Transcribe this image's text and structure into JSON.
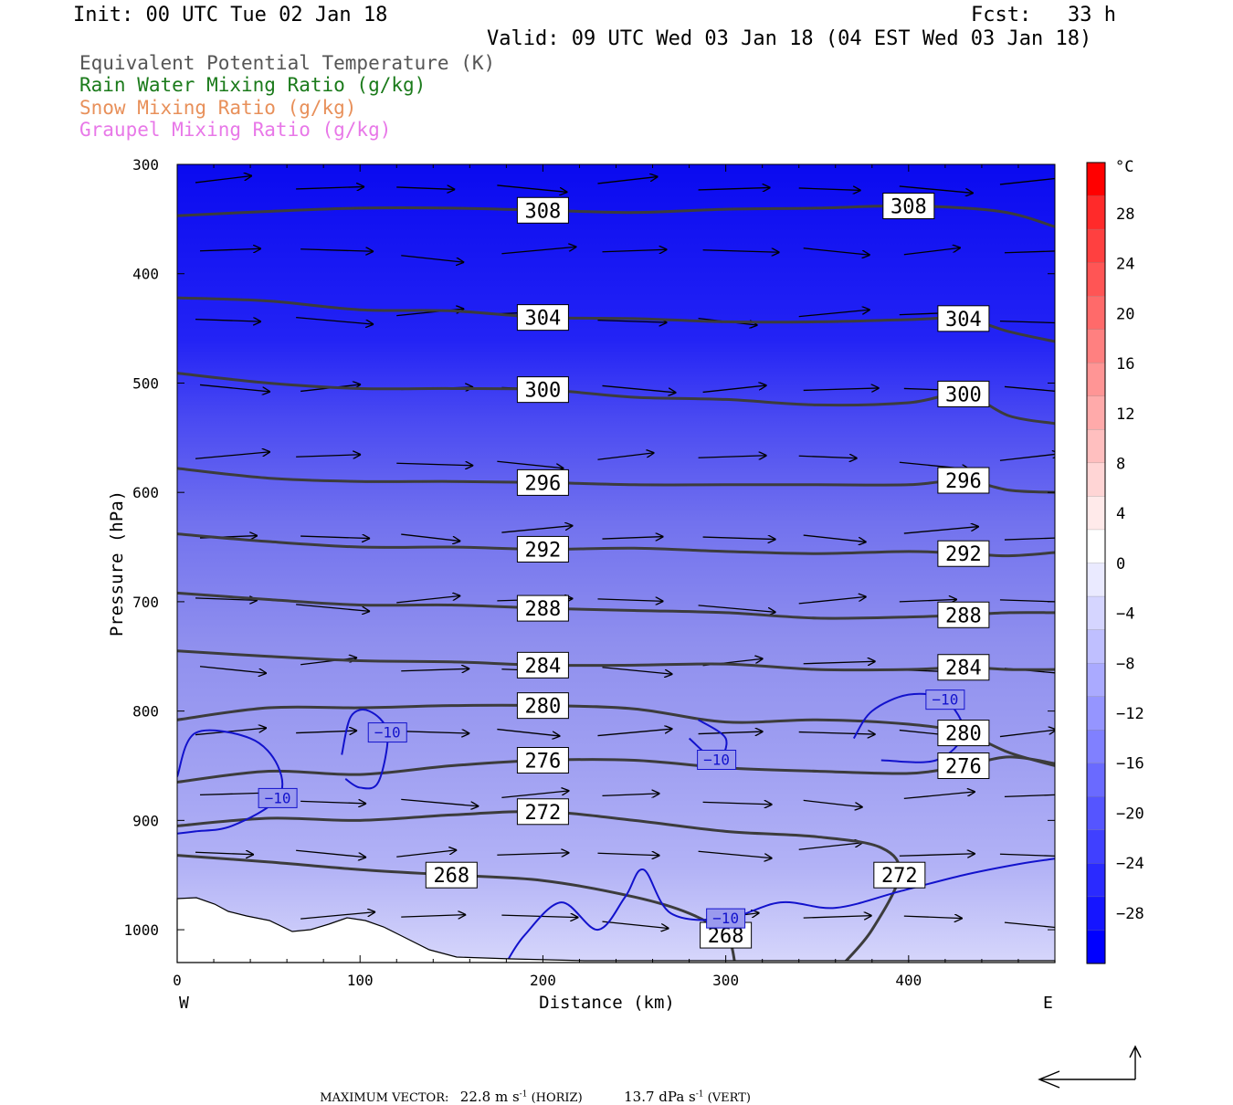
{
  "header": {
    "init": "Init: 00 UTC Tue 02 Jan 18",
    "fcst": "Fcst:   33 h",
    "valid": "Valid: 09 UTC Wed 03 Jan 18 (04 EST Wed 03 Jan 18)"
  },
  "legend": [
    {
      "label": "Equivalent Potential Temperature (K)",
      "color": "#555555"
    },
    {
      "label": "Rain Water Mixing Ratio (g/kg)",
      "color": "#1a7a1a"
    },
    {
      "label": "Snow Mixing Ratio (g/kg)",
      "color": "#e8905a"
    },
    {
      "label": "Graupel Mixing Ratio (g/kg)",
      "color": "#e878e8"
    }
  ],
  "footer": {
    "max_vector_label": "MAXIMUM VECTOR:",
    "horiz_value": "22.8 m s",
    "horiz_unit": " (HORIZ)",
    "vert_value": "13.7 dPa s",
    "vert_unit": " (VERT)",
    "exponent": "-1"
  },
  "chart_data": {
    "type": "cross-section",
    "xlabel": "Distance (km)",
    "ylabel": "Pressure (hPa)",
    "xlim": [
      0,
      480
    ],
    "ylim": [
      1030,
      300
    ],
    "x_ticks": [
      0,
      100,
      200,
      300,
      400
    ],
    "y_ticks": [
      300,
      400,
      500,
      600,
      700,
      800,
      900,
      1000
    ],
    "x_end_labels": {
      "left": "W",
      "right": "E"
    },
    "colorbar": {
      "unit": "°C",
      "tick_labels": [
        "28",
        "24",
        "20",
        "16",
        "12",
        "8",
        "4",
        "0",
        "−4",
        "−8",
        "−12",
        "−16",
        "−20",
        "−24",
        "−28"
      ],
      "colors": [
        "#ff0000",
        "#ff2a2a",
        "#ff4040",
        "#ff5555",
        "#ff6a6a",
        "#ff8080",
        "#ff9595",
        "#ffaaaa",
        "#ffbfbf",
        "#ffd5d5",
        "#ffeaea",
        "#ffffff",
        "#eaeaff",
        "#d5d5ff",
        "#bfbfff",
        "#aaaaff",
        "#9595ff",
        "#8080ff",
        "#6a6aff",
        "#5555ff",
        "#4040ff",
        "#2a2aff",
        "#1515ff",
        "#0000ff"
      ]
    },
    "theta_e_contours": [
      {
        "label": "308",
        "points": [
          [
            0,
            347
          ],
          [
            50,
            343
          ],
          [
            100,
            340
          ],
          [
            150,
            340
          ],
          [
            200,
            342
          ],
          [
            250,
            344
          ],
          [
            300,
            341
          ],
          [
            350,
            340
          ],
          [
            400,
            338
          ],
          [
            450,
            343
          ],
          [
            480,
            357
          ]
        ]
      },
      {
        "label": "304",
        "points": [
          [
            0,
            422
          ],
          [
            50,
            425
          ],
          [
            100,
            433
          ],
          [
            150,
            434
          ],
          [
            200,
            440
          ],
          [
            250,
            441
          ],
          [
            300,
            444
          ],
          [
            350,
            444
          ],
          [
            400,
            442
          ],
          [
            430,
            441
          ],
          [
            455,
            453
          ],
          [
            480,
            462
          ]
        ]
      },
      {
        "label": "300",
        "points": [
          [
            0,
            491
          ],
          [
            50,
            500
          ],
          [
            100,
            505
          ],
          [
            150,
            505
          ],
          [
            200,
            506
          ],
          [
            250,
            513
          ],
          [
            300,
            515
          ],
          [
            350,
            520
          ],
          [
            400,
            518
          ],
          [
            430,
            510
          ],
          [
            455,
            530
          ],
          [
            480,
            537
          ]
        ]
      },
      {
        "label": "296",
        "points": [
          [
            0,
            578
          ],
          [
            50,
            587
          ],
          [
            100,
            590
          ],
          [
            150,
            590
          ],
          [
            200,
            591
          ],
          [
            250,
            593
          ],
          [
            300,
            593
          ],
          [
            350,
            593
          ],
          [
            400,
            593
          ],
          [
            430,
            589
          ],
          [
            455,
            598
          ],
          [
            480,
            600
          ]
        ]
      },
      {
        "label": "292",
        "points": [
          [
            0,
            638
          ],
          [
            50,
            645
          ],
          [
            100,
            650
          ],
          [
            150,
            650
          ],
          [
            200,
            652
          ],
          [
            250,
            651
          ],
          [
            300,
            654
          ],
          [
            350,
            656
          ],
          [
            400,
            654
          ],
          [
            430,
            656
          ],
          [
            455,
            658
          ],
          [
            480,
            655
          ]
        ]
      },
      {
        "label": "288",
        "points": [
          [
            0,
            692
          ],
          [
            50,
            698
          ],
          [
            100,
            703
          ],
          [
            150,
            703
          ],
          [
            200,
            706
          ],
          [
            250,
            708
          ],
          [
            300,
            710
          ],
          [
            350,
            715
          ],
          [
            400,
            714
          ],
          [
            430,
            712
          ],
          [
            455,
            710
          ],
          [
            480,
            710
          ]
        ]
      },
      {
        "label": "284",
        "points": [
          [
            0,
            745
          ],
          [
            50,
            750
          ],
          [
            100,
            754
          ],
          [
            150,
            755
          ],
          [
            200,
            758
          ],
          [
            250,
            758
          ],
          [
            300,
            757
          ],
          [
            350,
            762
          ],
          [
            400,
            762
          ],
          [
            430,
            760
          ],
          [
            455,
            762
          ],
          [
            480,
            762
          ]
        ]
      },
      {
        "label": "280",
        "points": [
          [
            0,
            808
          ],
          [
            50,
            797
          ],
          [
            100,
            797
          ],
          [
            150,
            795
          ],
          [
            200,
            795
          ],
          [
            250,
            798
          ],
          [
            300,
            810
          ],
          [
            350,
            808
          ],
          [
            400,
            812
          ],
          [
            430,
            820
          ],
          [
            455,
            838
          ],
          [
            480,
            850
          ]
        ]
      },
      {
        "label": "276",
        "points": [
          [
            0,
            865
          ],
          [
            50,
            855
          ],
          [
            100,
            858
          ],
          [
            150,
            850
          ],
          [
            200,
            845
          ],
          [
            250,
            845
          ],
          [
            300,
            852
          ],
          [
            350,
            855
          ],
          [
            400,
            857
          ],
          [
            430,
            850
          ],
          [
            455,
            842
          ],
          [
            480,
            848
          ]
        ]
      },
      {
        "label": "272",
        "points": [
          [
            0,
            905
          ],
          [
            50,
            898
          ],
          [
            100,
            900
          ],
          [
            150,
            895
          ],
          [
            200,
            892
          ],
          [
            250,
            900
          ],
          [
            300,
            910
          ],
          [
            350,
            915
          ],
          [
            385,
            925
          ],
          [
            395,
            950
          ],
          [
            380,
            1000
          ],
          [
            365,
            1030
          ]
        ]
      },
      {
        "label": "268",
        "points": [
          [
            0,
            932
          ],
          [
            50,
            938
          ],
          [
            100,
            945
          ],
          [
            150,
            950
          ],
          [
            200,
            955
          ],
          [
            250,
            970
          ],
          [
            280,
            985
          ],
          [
            300,
            1005
          ],
          [
            305,
            1030
          ]
        ]
      }
    ],
    "isotherm_minus10_contours": [
      {
        "label": "−10",
        "points": [
          [
            0,
            860
          ],
          [
            10,
            820
          ],
          [
            40,
            825
          ],
          [
            55,
            850
          ],
          [
            55,
            880
          ],
          [
            30,
            905
          ],
          [
            10,
            910
          ],
          [
            0,
            912
          ]
        ]
      },
      {
        "label": "−10",
        "points": [
          [
            90,
            840
          ],
          [
            95,
            805
          ],
          [
            105,
            800
          ],
          [
            115,
            820
          ],
          [
            110,
            865
          ],
          [
            100,
            870
          ],
          [
            92,
            862
          ]
        ]
      },
      {
        "label": "−10",
        "points": [
          [
            180,
            1030
          ],
          [
            190,
            1005
          ],
          [
            210,
            975
          ],
          [
            230,
            1000
          ],
          [
            245,
            970
          ],
          [
            255,
            945
          ],
          [
            270,
            985
          ],
          [
            300,
            990
          ],
          [
            330,
            975
          ],
          [
            360,
            980
          ],
          [
            395,
            965
          ],
          [
            430,
            950
          ],
          [
            460,
            940
          ],
          [
            480,
            935
          ]
        ]
      },
      {
        "label": "−10",
        "points": [
          [
            285,
            808
          ],
          [
            300,
            825
          ],
          [
            295,
            845
          ],
          [
            280,
            825
          ]
        ]
      },
      {
        "label": "−10",
        "points": [
          [
            370,
            825
          ],
          [
            380,
            800
          ],
          [
            400,
            785
          ],
          [
            420,
            790
          ],
          [
            430,
            820
          ],
          [
            415,
            845
          ],
          [
            385,
            845
          ]
        ]
      }
    ],
    "vector_rows_hPa": [
      320,
      380,
      440,
      505,
      570,
      640,
      700,
      760,
      820,
      880,
      930,
      990
    ],
    "max_vector": {
      "horizontal": 22.8,
      "horizontal_unit": "m s-1",
      "vertical": 13.7,
      "vertical_unit": "dPa s-1"
    }
  }
}
